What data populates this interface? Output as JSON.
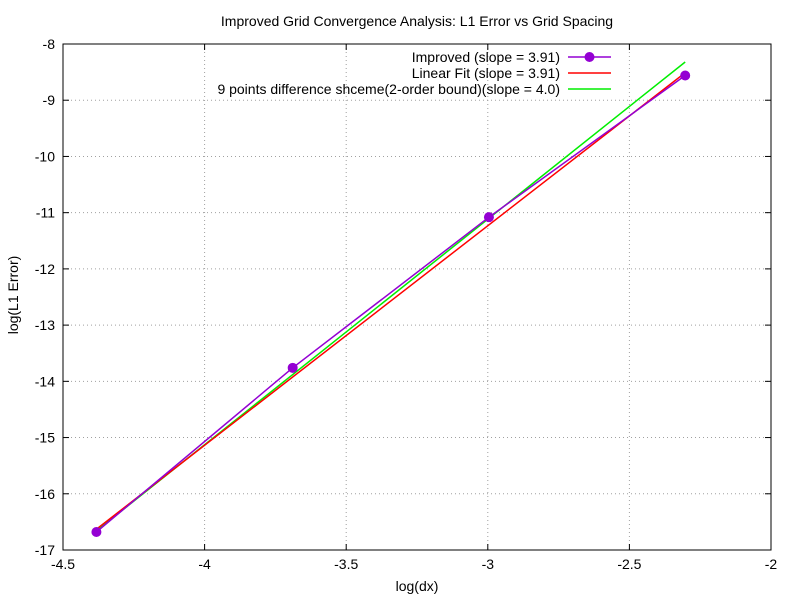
{
  "chart_data": {
    "type": "line",
    "title": "Improved Grid Convergence Analysis: L1 Error vs Grid Spacing",
    "xlabel": "log(dx)",
    "ylabel": "log(L1 Error)",
    "xlim": [
      -4.5,
      -2
    ],
    "ylim": [
      -17,
      -8
    ],
    "xticks": [
      -4.5,
      -4,
      -3.5,
      -3,
      -2.5,
      -2
    ],
    "xtick_labels": [
      "-4.5",
      "-4",
      "-3.5",
      "-3",
      "-2.5",
      "-2"
    ],
    "yticks": [
      -17,
      -16,
      -15,
      -14,
      -13,
      -12,
      -11,
      -10,
      -9,
      -8
    ],
    "ytick_labels": [
      "-17",
      "-16",
      "-15",
      "-14",
      "-13",
      "-12",
      "-11",
      "-10",
      "-9",
      "-8"
    ],
    "grid": true,
    "legend_position": "top-right",
    "series": [
      {
        "name": "Improved (slope = 3.91)",
        "color": "#9400D3",
        "style": "linespoints",
        "x": [
          -4.382,
          -3.689,
          -2.996,
          -2.303
        ],
        "y": [
          -16.68,
          -13.76,
          -11.08,
          -8.56
        ]
      },
      {
        "name": "Linear Fit (slope = 3.91)",
        "color": "#FF0000",
        "style": "line",
        "x": [
          -4.382,
          -2.303
        ],
        "y": [
          -16.63,
          -8.51
        ]
      },
      {
        "name": "9 points difference shceme(2-order bound)(slope = 4.0)",
        "color": "#00EE00",
        "style": "line",
        "x": [
          -4.382,
          -2.303
        ],
        "y": [
          -16.66,
          -8.32
        ]
      }
    ]
  }
}
